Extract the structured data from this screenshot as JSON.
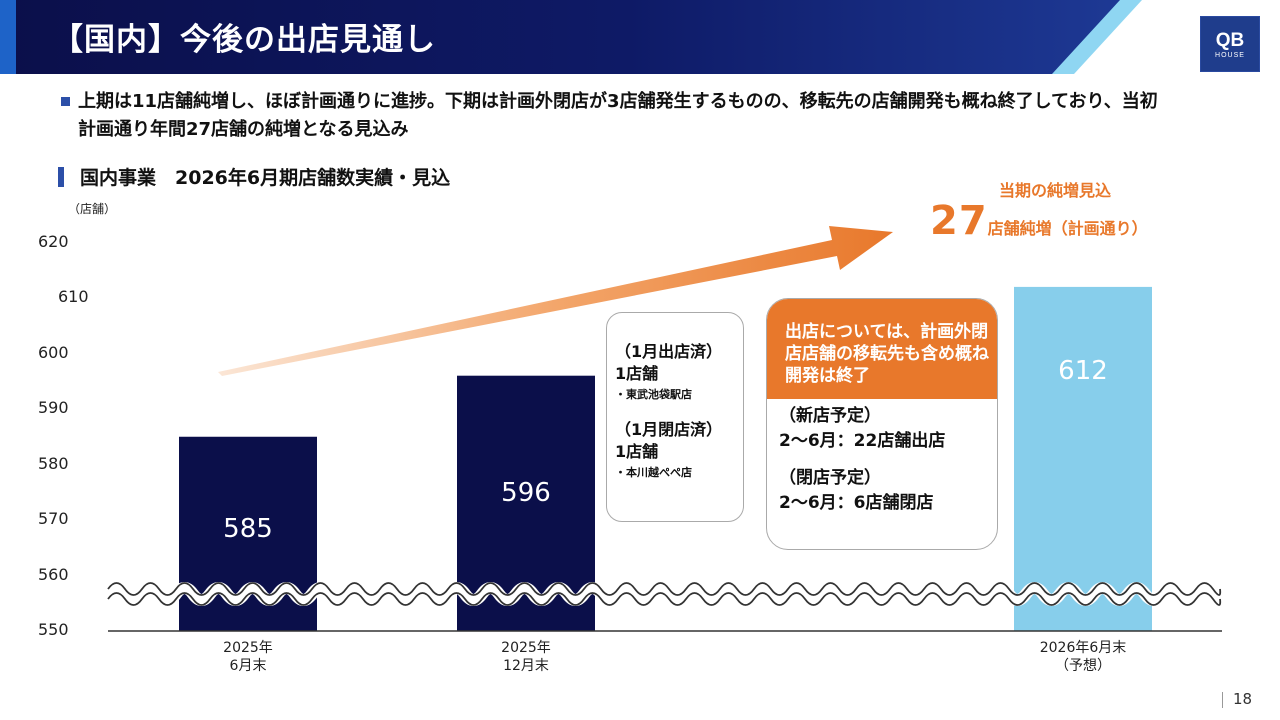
{
  "header": {
    "title": "【国内】今後の出店見通し",
    "logo_main": "QB",
    "logo_sub": "HOUSE"
  },
  "bullet": "上期は11店舗純増し、ほぼ計画通りに進捗。下期は計画外閉店が3店舗発生するものの、移転先の店舗開発も概ね終了しており、当初計画通り年間27店舗の純増となる見込み",
  "section_title": "国内事業　2026年6月期店舗数実績・見込",
  "chart_data": {
    "type": "bar",
    "title": "国内事業　2026年6月期店舗数実績・見込",
    "ylabel": "（店舗）",
    "ylim": [
      550,
      620
    ],
    "yticks": [
      550,
      560,
      570,
      580,
      590,
      600,
      610,
      620
    ],
    "axis_break": true,
    "categories": [
      {
        "line1": "2025年",
        "line2": "6月末"
      },
      {
        "line1": "2025年",
        "line2": "12月末"
      },
      {
        "line1": "2026年6月末",
        "line2": "（予想）"
      }
    ],
    "values": [
      585,
      596,
      612
    ],
    "bar_colors": [
      "#0b0f4a",
      "#0b0f4a",
      "#87ceeb"
    ],
    "trend_arrow_color": "#e8782b"
  },
  "notes": {
    "open_head": "（1月出店済）",
    "open_count": "1店舗",
    "open_store": "・東武池袋駅店",
    "close_head": "（1月閉店済）",
    "close_count": "1店舗",
    "close_store": "・本川越ぺぺ店"
  },
  "plan": {
    "callout": "出店については、計画外閉店店舗の移転先も含め概ね開発は終了",
    "new_head": "（新店予定）",
    "new_detail": "2～6月：22店舗出店",
    "close_head": "（閉店予定）",
    "close_detail": "2～6月：6店舗閉店"
  },
  "annotation": {
    "title": "当期の純増見込",
    "number": "27",
    "text": "店舗純増（計画通り）"
  },
  "page_number": "18",
  "colors": {
    "header_dark": "#0b0f4a",
    "accent_blue": "#2c4fa8",
    "orange": "#e8782b",
    "forecast_bar": "#87ceeb"
  }
}
